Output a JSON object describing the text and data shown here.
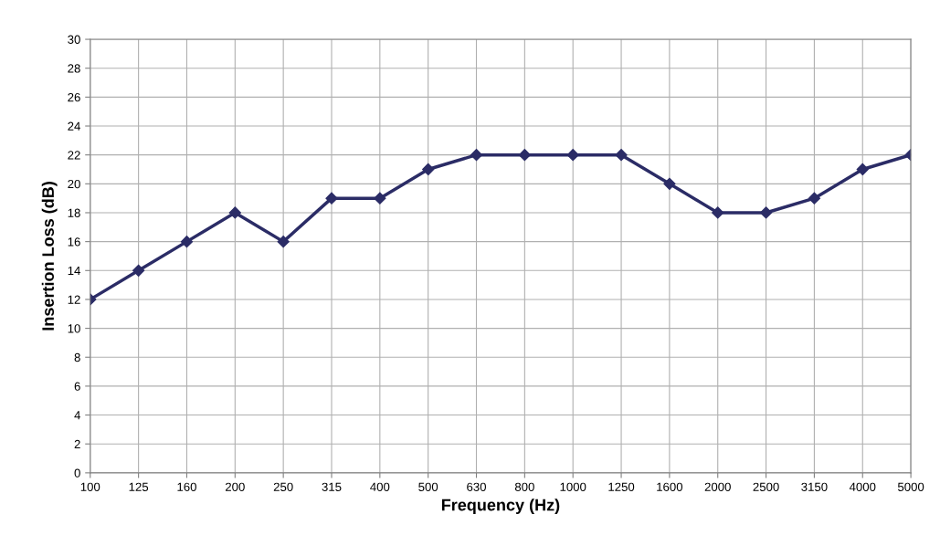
{
  "chart_data": {
    "type": "line",
    "xlabel": "Frequency (Hz)",
    "ylabel": "Insertion Loss (dB)",
    "categories": [
      "100",
      "125",
      "160",
      "200",
      "250",
      "315",
      "400",
      "500",
      "630",
      "800",
      "1000",
      "1250",
      "1600",
      "2000",
      "2500",
      "3150",
      "4000",
      "5000"
    ],
    "series": [
      {
        "color": "#2b2c66",
        "values": [
          12,
          14,
          16,
          18,
          16,
          19,
          19,
          21,
          22,
          22,
          22,
          22,
          20,
          18,
          18,
          19,
          21,
          22
        ]
      }
    ],
    "ylim": [
      0,
      30
    ],
    "yticks": [
      0,
      2,
      4,
      6,
      8,
      10,
      12,
      14,
      16,
      18,
      20,
      22,
      24,
      26,
      28,
      30
    ],
    "grid": true,
    "marker": "diamond",
    "line_style": "solid"
  }
}
